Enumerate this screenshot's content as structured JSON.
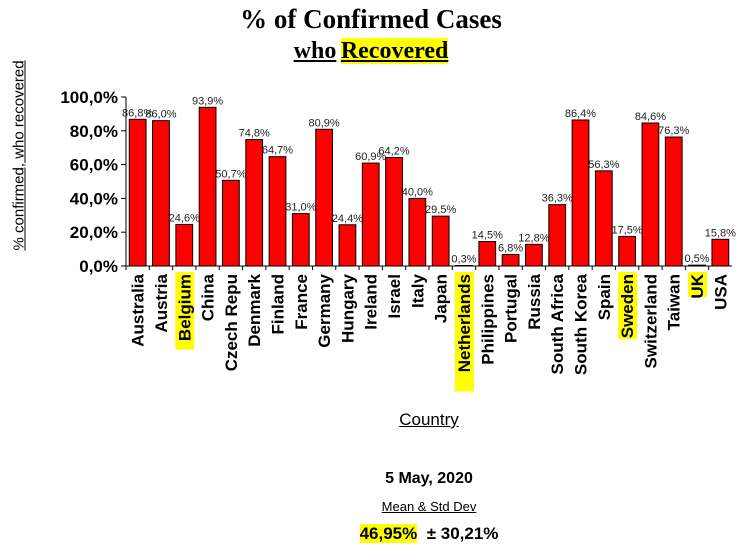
{
  "title": "% of Confirmed Cases",
  "subtitle_prefix": "who",
  "subtitle_highlight": "Recovered",
  "footer": {
    "date": "5 May, 2020",
    "stat_label": "Mean & Std Dev",
    "mean": "46,95%",
    "std": "± 30,21%"
  },
  "colors": {
    "bar": "#ff0000",
    "highlight": "#ffff00"
  },
  "chart_data": {
    "type": "bar",
    "xlabel": "Country",
    "ylabel": "% confirmed, who recovered",
    "ylim": [
      0,
      100
    ],
    "yticks": [
      "0,0%",
      "20,0%",
      "40,0%",
      "60,0%",
      "80,0%",
      "100,0%"
    ],
    "grid": false,
    "categories": [
      "Australia",
      "Austria",
      "Belgium",
      "China",
      "Czech Repu",
      "Denmark",
      "Finland",
      "France",
      "Germany",
      "Hungary",
      "Ireland",
      "Israel",
      "Italy",
      "Japan",
      "Netherlands",
      "Philippines",
      "Portugal",
      "Russia",
      "South Africa",
      "South Korea",
      "Spain",
      "Sweden",
      "Switzerland",
      "Taiwan",
      "UK",
      "USA"
    ],
    "highlighted": [
      "Belgium",
      "Netherlands",
      "Sweden",
      "UK"
    ],
    "values": [
      86.8,
      86.0,
      24.6,
      93.9,
      50.7,
      74.8,
      64.7,
      31.0,
      80.9,
      24.4,
      60.9,
      64.2,
      40.0,
      29.5,
      0.3,
      14.5,
      6.8,
      12.8,
      36.3,
      86.4,
      56.3,
      17.5,
      84.6,
      76.3,
      0.5,
      15.8
    ],
    "data_labels": [
      "86,8%",
      "86,0%",
      "24,6%",
      "93,9%",
      "50,7%",
      "74,8%",
      "64,7%",
      "31,0%",
      "80,9%",
      "24,4%",
      "60,9%",
      "64,2%",
      "40,0%",
      "29,5%",
      "0,3%",
      "14,5%",
      "6,8%",
      "12,8%",
      "36,3%",
      "86,4%",
      "56,3%",
      "17,5%",
      "84,6%",
      "76,3%",
      "0,5%",
      "15,8%"
    ]
  }
}
